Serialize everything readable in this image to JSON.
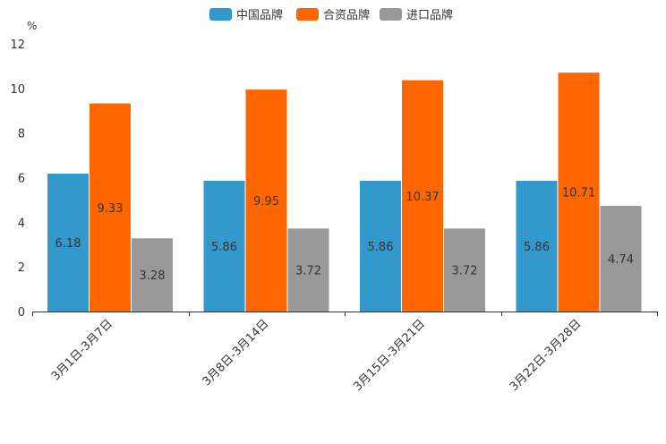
{
  "chart_data": {
    "type": "bar",
    "unit_label": "%",
    "categories": [
      "3月1日-3月7日",
      "3月8日-3月14日",
      "3月15日-3月21日",
      "3月22日-3月28日"
    ],
    "series": [
      {
        "name": "中国品牌",
        "color": "#3399cc",
        "values": [
          6.18,
          5.86,
          5.86,
          5.86
        ]
      },
      {
        "name": "合资品牌",
        "color": "#ff6600",
        "values": [
          9.33,
          9.95,
          10.37,
          10.71
        ]
      },
      {
        "name": "进口品牌",
        "color": "#999999",
        "values": [
          3.28,
          3.72,
          3.72,
          4.74
        ]
      }
    ],
    "y_ticks": [
      "0",
      "2",
      "4",
      "6",
      "8",
      "10",
      "12"
    ],
    "ylim": [
      0,
      12
    ],
    "legend_position": "top-center",
    "grid": false
  }
}
